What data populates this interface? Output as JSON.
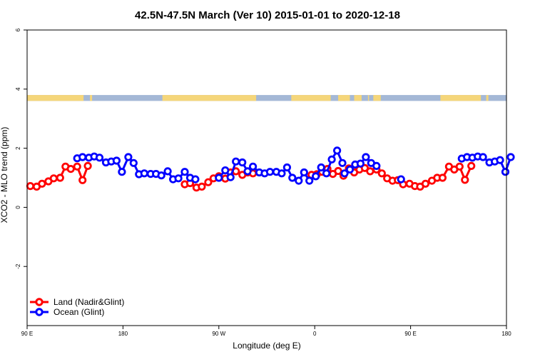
{
  "chart_data": {
    "type": "line",
    "title": "42.5N-47.5N March (Ver 10)   2015-01-01 to 2020-12-18",
    "xlabel": "Longitude (deg E)",
    "ylabel": "XCO2 - MLO trend (ppm)",
    "x_domain": [
      90,
      540
    ],
    "xlim": [
      90,
      540
    ],
    "ylim": [
      -4,
      6
    ],
    "y_ticks": [
      -2,
      0,
      2,
      4,
      6
    ],
    "x_ticks": [
      {
        "value": 90,
        "label": "90 E"
      },
      {
        "value": 180,
        "label": "180"
      },
      {
        "value": 270,
        "label": "90 W"
      },
      {
        "value": 360,
        "label": "0"
      },
      {
        "value": 450,
        "label": "90 E"
      },
      {
        "value": 540,
        "label": "180"
      }
    ],
    "legend": {
      "position": "bottom-left"
    },
    "colors": {
      "land": "#ff0000",
      "ocean": "#0000ff",
      "land_band": "#f5d67a",
      "ocean_band": "#a4b8d6"
    },
    "land_mask": {
      "y_range": [
        3.6,
        3.8
      ],
      "land_segments": [
        [
          90,
          143
        ],
        [
          149,
          151
        ],
        [
          217,
          305
        ],
        [
          338,
          375
        ],
        [
          382,
          393
        ],
        [
          397,
          404
        ],
        [
          410,
          411
        ],
        [
          415,
          422
        ],
        [
          478,
          516
        ],
        [
          521,
          523
        ]
      ]
    },
    "series": [
      {
        "name": "Land (Nadir&Glint)",
        "key": "land",
        "segments": [
          [
            [
              93,
              0.72
            ],
            [
              99,
              0.7
            ],
            [
              104,
              0.8
            ],
            [
              110,
              0.88
            ],
            [
              115,
              0.98
            ],
            [
              121,
              1.0
            ],
            [
              126,
              1.38
            ],
            [
              131,
              1.3
            ],
            [
              137,
              1.38
            ],
            [
              142,
              0.92
            ],
            [
              147,
              1.4
            ]
          ],
          [
            [
              238,
              0.78
            ],
            [
              243,
              0.82
            ],
            [
              249,
              0.67
            ],
            [
              254,
              0.7
            ],
            [
              260,
              0.85
            ],
            [
              265,
              0.98
            ],
            [
              270,
              1.05
            ],
            [
              276,
              0.97
            ],
            [
              281,
              1.18
            ],
            [
              286,
              1.22
            ],
            [
              292,
              1.1
            ],
            [
              297,
              1.18
            ],
            [
              302,
              1.15
            ]
          ],
          [
            [
              357,
              1.1
            ],
            [
              362,
              1.12
            ],
            [
              367,
              1.2
            ],
            [
              372,
              1.3
            ],
            [
              377,
              1.13
            ],
            [
              382,
              1.23
            ],
            [
              387,
              1.07
            ],
            [
              392,
              1.32
            ],
            [
              397,
              1.18
            ],
            [
              402,
              1.28
            ],
            [
              407,
              1.33
            ],
            [
              412,
              1.22
            ],
            [
              418,
              1.28
            ],
            [
              423,
              1.15
            ],
            [
              428,
              0.98
            ],
            [
              433,
              0.9
            ],
            [
              438,
              0.92
            ],
            [
              443,
              0.78
            ],
            [
              449,
              0.8
            ],
            [
              454,
              0.72
            ],
            [
              459,
              0.7
            ],
            [
              464,
              0.8
            ],
            [
              470,
              0.9
            ],
            [
              475,
              1.0
            ],
            [
              480,
              1.0
            ],
            [
              486,
              1.38
            ],
            [
              491,
              1.28
            ],
            [
              496,
              1.38
            ],
            [
              501,
              0.93
            ],
            [
              507,
              1.4
            ]
          ]
        ]
      },
      {
        "name": "Ocean (Glint)",
        "key": "ocean",
        "segments": [
          [
            [
              137,
              1.66
            ],
            [
              142,
              1.7
            ],
            [
              148,
              1.68
            ],
            [
              153,
              1.72
            ],
            [
              158,
              1.68
            ],
            [
              164,
              1.52
            ],
            [
              169,
              1.55
            ],
            [
              174,
              1.58
            ],
            [
              179,
              1.2
            ],
            [
              185,
              1.7
            ],
            [
              190,
              1.5
            ],
            [
              195,
              1.12
            ],
            [
              200,
              1.15
            ],
            [
              206,
              1.13
            ],
            [
              211,
              1.13
            ],
            [
              216,
              1.08
            ],
            [
              222,
              1.22
            ],
            [
              227,
              0.95
            ],
            [
              232,
              0.98
            ],
            [
              238,
              1.2
            ],
            [
              243,
              1.0
            ],
            [
              248,
              0.95
            ]
          ],
          [
            [
              270,
              1.0
            ],
            [
              276,
              1.25
            ],
            [
              281,
              1.02
            ],
            [
              286,
              1.55
            ],
            [
              292,
              1.52
            ],
            [
              297,
              1.22
            ],
            [
              302,
              1.38
            ],
            [
              308,
              1.18
            ],
            [
              313,
              1.15
            ],
            [
              318,
              1.2
            ],
            [
              324,
              1.2
            ],
            [
              329,
              1.15
            ],
            [
              334,
              1.35
            ],
            [
              339,
              1.0
            ],
            [
              345,
              0.9
            ],
            [
              350,
              1.18
            ],
            [
              355,
              0.9
            ],
            [
              361,
              1.05
            ],
            [
              366,
              1.35
            ],
            [
              371,
              1.15
            ],
            [
              376,
              1.62
            ],
            [
              381,
              1.92
            ],
            [
              386,
              1.5
            ]
          ],
          [
            [
              388,
              1.15
            ],
            [
              393,
              1.28
            ],
            [
              398,
              1.45
            ],
            [
              403,
              1.48
            ],
            [
              408,
              1.7
            ],
            [
              413,
              1.5
            ],
            [
              418,
              1.4
            ]
          ],
          [
            [
              441,
              0.95
            ]
          ],
          [
            [
              498,
              1.65
            ],
            [
              503,
              1.7
            ],
            [
              508,
              1.68
            ],
            [
              513,
              1.72
            ],
            [
              518,
              1.7
            ],
            [
              524,
              1.52
            ],
            [
              529,
              1.55
            ],
            [
              534,
              1.6
            ],
            [
              539,
              1.2
            ],
            [
              544,
              1.7
            ]
          ]
        ]
      }
    ]
  }
}
